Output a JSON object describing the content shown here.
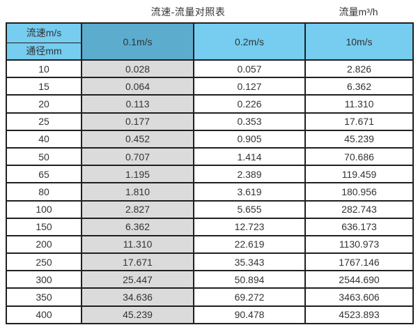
{
  "titles": {
    "left": "流速-流量对照表",
    "right": "流量m³/h"
  },
  "table": {
    "corner_top": "流速m/s",
    "corner_bottom": "通径mm",
    "velocity_columns": [
      "0.1m/s",
      "0.2m/s",
      "10m/s"
    ],
    "rows": [
      {
        "diameter": "10",
        "flow_0_1": "0.028",
        "flow_0_2": "0.057",
        "flow_10": "2.826"
      },
      {
        "diameter": "15",
        "flow_0_1": "0.064",
        "flow_0_2": "0.127",
        "flow_10": "6.362"
      },
      {
        "diameter": "20",
        "flow_0_1": "0.113",
        "flow_0_2": "0.226",
        "flow_10": "11.310"
      },
      {
        "diameter": "25",
        "flow_0_1": "0.177",
        "flow_0_2": "0.353",
        "flow_10": "17.671"
      },
      {
        "diameter": "40",
        "flow_0_1": "0.452",
        "flow_0_2": "0.905",
        "flow_10": "45.239"
      },
      {
        "diameter": "50",
        "flow_0_1": "0.707",
        "flow_0_2": "1.414",
        "flow_10": "70.686"
      },
      {
        "diameter": "65",
        "flow_0_1": "1.195",
        "flow_0_2": "2.389",
        "flow_10": "119.459"
      },
      {
        "diameter": "80",
        "flow_0_1": "1.810",
        "flow_0_2": "3.619",
        "flow_10": "180.956"
      },
      {
        "diameter": "100",
        "flow_0_1": "2.827",
        "flow_0_2": "5.655",
        "flow_10": "282.743"
      },
      {
        "diameter": "150",
        "flow_0_1": "6.362",
        "flow_0_2": "12.723",
        "flow_10": "636.173"
      },
      {
        "diameter": "200",
        "flow_0_1": "11.310",
        "flow_0_2": "22.619",
        "flow_10": "1130.973"
      },
      {
        "diameter": "250",
        "flow_0_1": "17.671",
        "flow_0_2": "35.343",
        "flow_10": "1767.146"
      },
      {
        "diameter": "300",
        "flow_0_1": "25.447",
        "flow_0_2": "50.894",
        "flow_10": "2544.690"
      },
      {
        "diameter": "350",
        "flow_0_1": "34.636",
        "flow_0_2": "69.272",
        "flow_10": "3463.606"
      },
      {
        "diameter": "400",
        "flow_0_1": "45.239",
        "flow_0_2": "90.478",
        "flow_10": "4523.893"
      }
    ]
  },
  "colors": {
    "header_light_blue": "#76CDEF",
    "header_dark_blue": "#5CACCE",
    "shaded_column_gray": "#DBDBDB",
    "border_black": "#1F1F1F"
  },
  "chart_data": {
    "type": "table",
    "title": "流速-流量对照表",
    "unit_label": "流量m³/h",
    "col_header": "流速m/s",
    "row_header": "通径mm",
    "columns": [
      "0.1m/s",
      "0.2m/s",
      "10m/s"
    ],
    "diameters_mm": [
      10,
      15,
      20,
      25,
      40,
      50,
      65,
      80,
      100,
      150,
      200,
      250,
      300,
      350,
      400
    ],
    "series": [
      {
        "name": "0.1m/s",
        "values": [
          0.028,
          0.064,
          0.113,
          0.177,
          0.452,
          0.707,
          1.195,
          1.81,
          2.827,
          6.362,
          11.31,
          17.671,
          25.447,
          34.636,
          45.239
        ]
      },
      {
        "name": "0.2m/s",
        "values": [
          0.057,
          0.127,
          0.226,
          0.353,
          0.905,
          1.414,
          2.389,
          3.619,
          5.655,
          12.723,
          22.619,
          35.343,
          50.894,
          69.272,
          90.478
        ]
      },
      {
        "name": "10m/s",
        "values": [
          2.826,
          6.362,
          11.31,
          17.671,
          45.239,
          70.686,
          119.459,
          180.956,
          282.743,
          636.173,
          1130.973,
          1767.146,
          2544.69,
          3463.606,
          4523.893
        ]
      }
    ]
  }
}
